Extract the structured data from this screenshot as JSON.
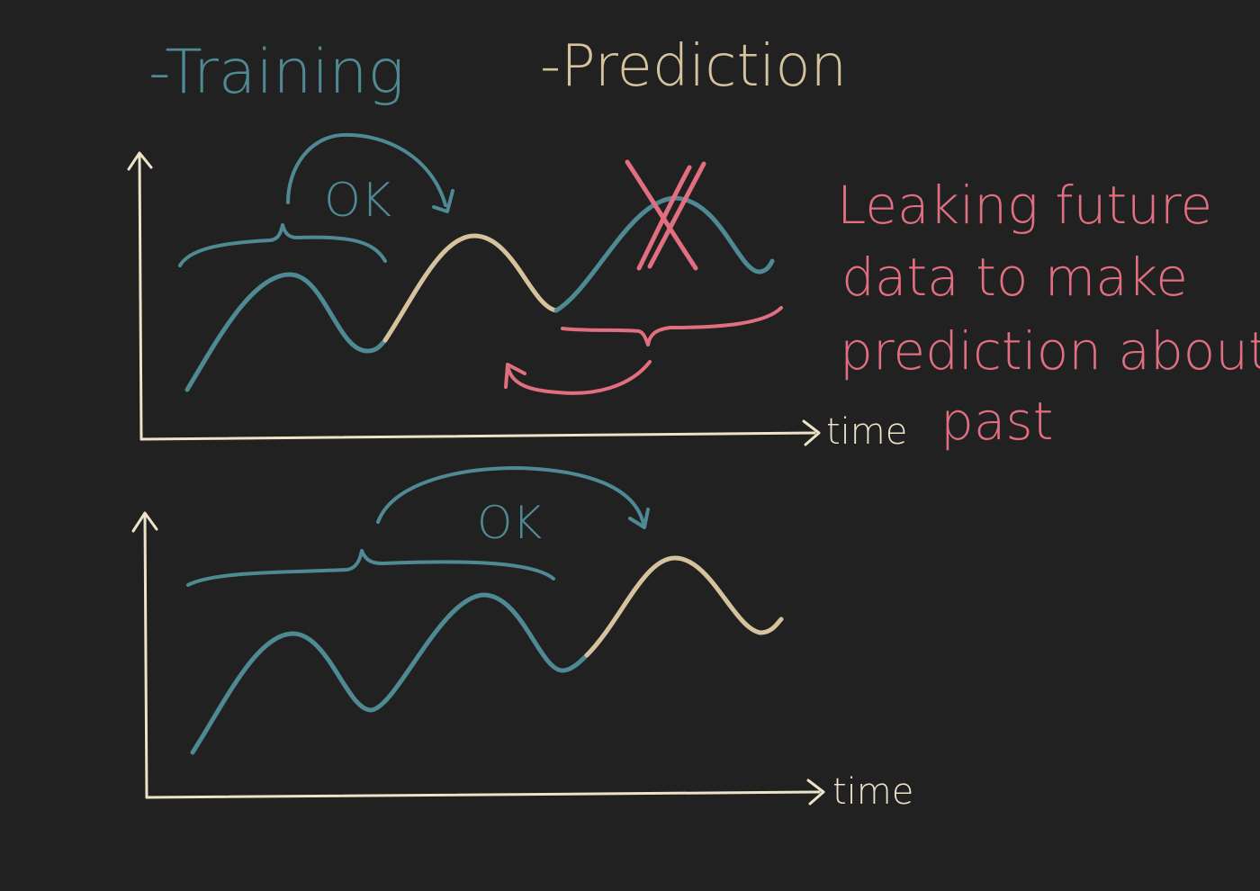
{
  "legend": {
    "training": {
      "label": "-Training",
      "color": "#4f8a94"
    },
    "prediction": {
      "label": "-Prediction",
      "color": "#d6c39e"
    }
  },
  "colors": {
    "background": "#212121",
    "axis": "#ede3c8",
    "leak": "#e26f80"
  },
  "top_panel": {
    "x_axis_label": "time",
    "ok_label": "OK",
    "cross_icon": "cross-mark-icon",
    "note": {
      "lines": [
        "Leaking future",
        "data to make",
        "prediction about",
        "past"
      ]
    }
  },
  "bottom_panel": {
    "x_axis_label": "time",
    "ok_label": "OK"
  }
}
